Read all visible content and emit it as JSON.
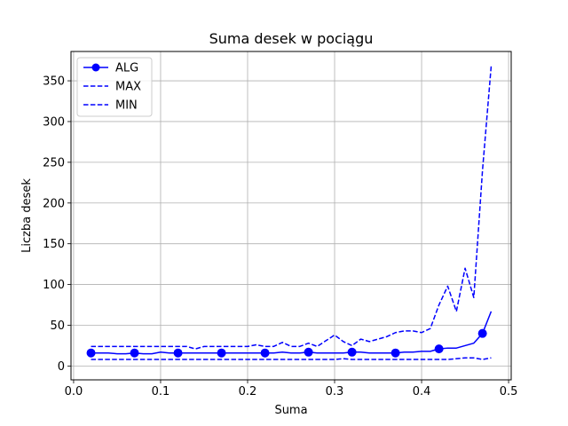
{
  "chart_data": {
    "type": "line",
    "title": "Suma desek w pociągu",
    "xlabel": "Suma",
    "ylabel": "Liczba desek",
    "xlim": [
      -0.003,
      0.503
    ],
    "ylim": [
      -17,
      386
    ],
    "xticks": [
      0.0,
      0.1,
      0.2,
      0.3,
      0.4,
      0.5
    ],
    "xtick_labels": [
      "0.0",
      "0.1",
      "0.2",
      "0.3",
      "0.4",
      "0.5"
    ],
    "yticks": [
      0,
      50,
      100,
      150,
      200,
      250,
      300,
      350
    ],
    "ytick_labels": [
      "0",
      "50",
      "100",
      "150",
      "200",
      "250",
      "300",
      "350"
    ],
    "grid": true,
    "legend_position": "top-left",
    "x": [
      0.02,
      0.03,
      0.04,
      0.05,
      0.06,
      0.07,
      0.08,
      0.09,
      0.1,
      0.11,
      0.12,
      0.13,
      0.14,
      0.15,
      0.16,
      0.17,
      0.18,
      0.19,
      0.2,
      0.21,
      0.22,
      0.23,
      0.24,
      0.25,
      0.26,
      0.27,
      0.28,
      0.29,
      0.3,
      0.31,
      0.32,
      0.33,
      0.34,
      0.35,
      0.36,
      0.37,
      0.38,
      0.39,
      0.4,
      0.41,
      0.42,
      0.43,
      0.44,
      0.45,
      0.46,
      0.47,
      0.48
    ],
    "series": [
      {
        "name": "ALG",
        "style": "solid",
        "marker": "circle",
        "markevery": 5,
        "color": "#0000ff",
        "values": [
          16,
          16,
          16,
          15,
          15,
          16,
          15,
          15,
          17,
          16,
          16,
          16,
          16,
          16,
          16,
          16,
          16,
          16,
          16,
          16,
          16,
          16,
          17,
          16,
          16,
          17,
          16,
          16,
          16,
          16,
          17,
          17,
          16,
          16,
          16,
          16,
          17,
          17,
          18,
          18,
          21,
          22,
          22,
          25,
          28,
          40,
          67
        ]
      },
      {
        "name": "MAX",
        "style": "dashed",
        "color": "#0000ff",
        "values": [
          24,
          24,
          24,
          24,
          24,
          24,
          24,
          24,
          24,
          24,
          24,
          24,
          21,
          24,
          24,
          24,
          24,
          24,
          24,
          26,
          24,
          24,
          29,
          24,
          24,
          28,
          24,
          31,
          38,
          30,
          25,
          33,
          30,
          33,
          36,
          41,
          43,
          43,
          41,
          46,
          75,
          98,
          67,
          120,
          84,
          240,
          368
        ]
      },
      {
        "name": "MIN",
        "style": "dashed",
        "color": "#0000ff",
        "values": [
          8,
          8,
          8,
          8,
          8,
          8,
          8,
          8,
          8,
          8,
          8,
          8,
          8,
          8,
          8,
          8,
          8,
          8,
          8,
          8,
          8,
          8,
          8,
          8,
          8,
          8,
          8,
          8,
          8,
          9,
          8,
          8,
          8,
          8,
          8,
          8,
          8,
          8,
          8,
          8,
          8,
          8,
          9,
          10,
          10,
          8,
          10
        ]
      }
    ]
  }
}
